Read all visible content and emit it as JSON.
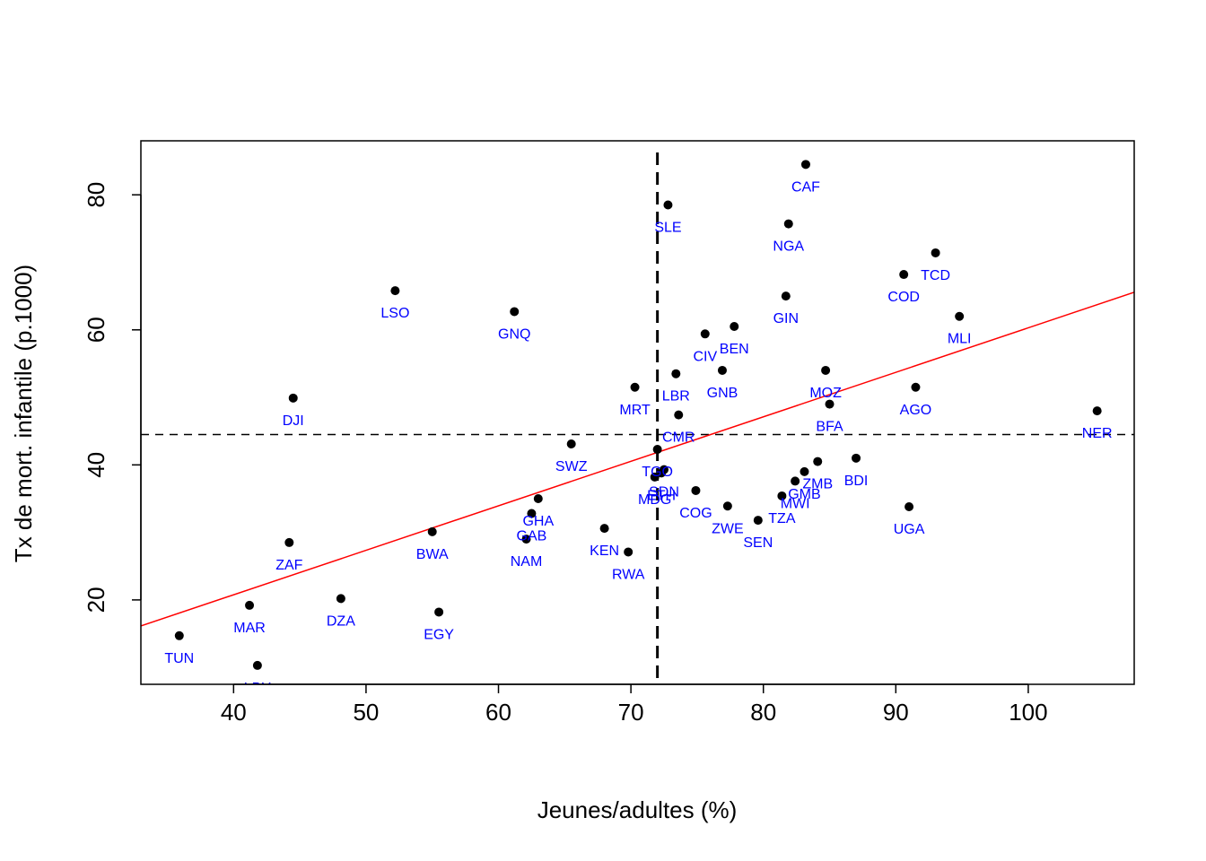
{
  "chart_data": {
    "type": "scatter",
    "xlabel": "Jeunes/adultes (%)",
    "ylabel": "Tx de mort. infantile (p.1000)",
    "xlim": [
      33,
      108
    ],
    "ylim": [
      7.5,
      88
    ],
    "x_ticks": [
      40,
      50,
      60,
      70,
      80,
      90,
      100
    ],
    "y_ticks": [
      20,
      40,
      60,
      80
    ],
    "grid": false,
    "point_color": "#000000",
    "label_color": "#0000ff",
    "regression_color": "#ff0000",
    "regression_line": {
      "intercept": -5.6,
      "slope": 0.659
    },
    "mean_x": 72.0,
    "mean_y": 44.5,
    "points": [
      {
        "label": "TUN",
        "x": 35.9,
        "y": 14.7
      },
      {
        "label": "MAR",
        "x": 41.2,
        "y": 19.2
      },
      {
        "label": "LBY",
        "x": 41.8,
        "y": 10.3
      },
      {
        "label": "ZAF",
        "x": 44.2,
        "y": 28.5
      },
      {
        "label": "DJI",
        "x": 44.5,
        "y": 49.9
      },
      {
        "label": "DZA",
        "x": 48.1,
        "y": 20.2
      },
      {
        "label": "LSO",
        "x": 52.2,
        "y": 65.8
      },
      {
        "label": "BWA",
        "x": 55.0,
        "y": 30.1
      },
      {
        "label": "EGY",
        "x": 55.5,
        "y": 18.2
      },
      {
        "label": "GNQ",
        "x": 61.2,
        "y": 62.7
      },
      {
        "label": "NAM",
        "x": 62.1,
        "y": 29.0
      },
      {
        "label": "GAB",
        "x": 62.5,
        "y": 32.8
      },
      {
        "label": "GHA",
        "x": 63.0,
        "y": 35.0
      },
      {
        "label": "SWZ",
        "x": 65.5,
        "y": 43.1
      },
      {
        "label": "KEN",
        "x": 68.0,
        "y": 30.6
      },
      {
        "label": "RWA",
        "x": 69.8,
        "y": 27.1
      },
      {
        "label": "MRT",
        "x": 70.3,
        "y": 51.5
      },
      {
        "label": "MDG",
        "x": 71.8,
        "y": 38.2
      },
      {
        "label": "TGO",
        "x": 72.0,
        "y": 42.3
      },
      {
        "label": "ETH",
        "x": 72.3,
        "y": 38.8
      },
      {
        "label": "SDN",
        "x": 72.5,
        "y": 39.3
      },
      {
        "label": "SLE",
        "x": 72.8,
        "y": 78.5
      },
      {
        "label": "LBR",
        "x": 73.4,
        "y": 53.5
      },
      {
        "label": "CMR",
        "x": 73.6,
        "y": 47.4
      },
      {
        "label": "COG",
        "x": 74.9,
        "y": 36.2
      },
      {
        "label": "CIV",
        "x": 75.6,
        "y": 59.4
      },
      {
        "label": "GNB",
        "x": 76.9,
        "y": 54.0
      },
      {
        "label": "ZWE",
        "x": 77.3,
        "y": 33.9
      },
      {
        "label": "BEN",
        "x": 77.8,
        "y": 60.5
      },
      {
        "label": "SEN",
        "x": 79.6,
        "y": 31.8
      },
      {
        "label": "TZA",
        "x": 81.4,
        "y": 35.4
      },
      {
        "label": "GIN",
        "x": 81.7,
        "y": 65.0
      },
      {
        "label": "NGA",
        "x": 81.9,
        "y": 75.7
      },
      {
        "label": "MWI",
        "x": 82.4,
        "y": 37.6
      },
      {
        "label": "GMB",
        "x": 83.1,
        "y": 39.0
      },
      {
        "label": "CAF",
        "x": 83.2,
        "y": 84.5
      },
      {
        "label": "ZMB",
        "x": 84.1,
        "y": 40.5
      },
      {
        "label": "MOZ",
        "x": 84.7,
        "y": 54.0
      },
      {
        "label": "BFA",
        "x": 85.0,
        "y": 49.0
      },
      {
        "label": "BDI",
        "x": 87.0,
        "y": 41.0
      },
      {
        "label": "COD",
        "x": 90.6,
        "y": 68.2
      },
      {
        "label": "UGA",
        "x": 91.0,
        "y": 33.8
      },
      {
        "label": "AGO",
        "x": 91.5,
        "y": 51.5
      },
      {
        "label": "TCD",
        "x": 93.0,
        "y": 71.4
      },
      {
        "label": "MLI",
        "x": 94.8,
        "y": 62.0
      },
      {
        "label": "NER",
        "x": 105.2,
        "y": 48.0
      }
    ]
  }
}
